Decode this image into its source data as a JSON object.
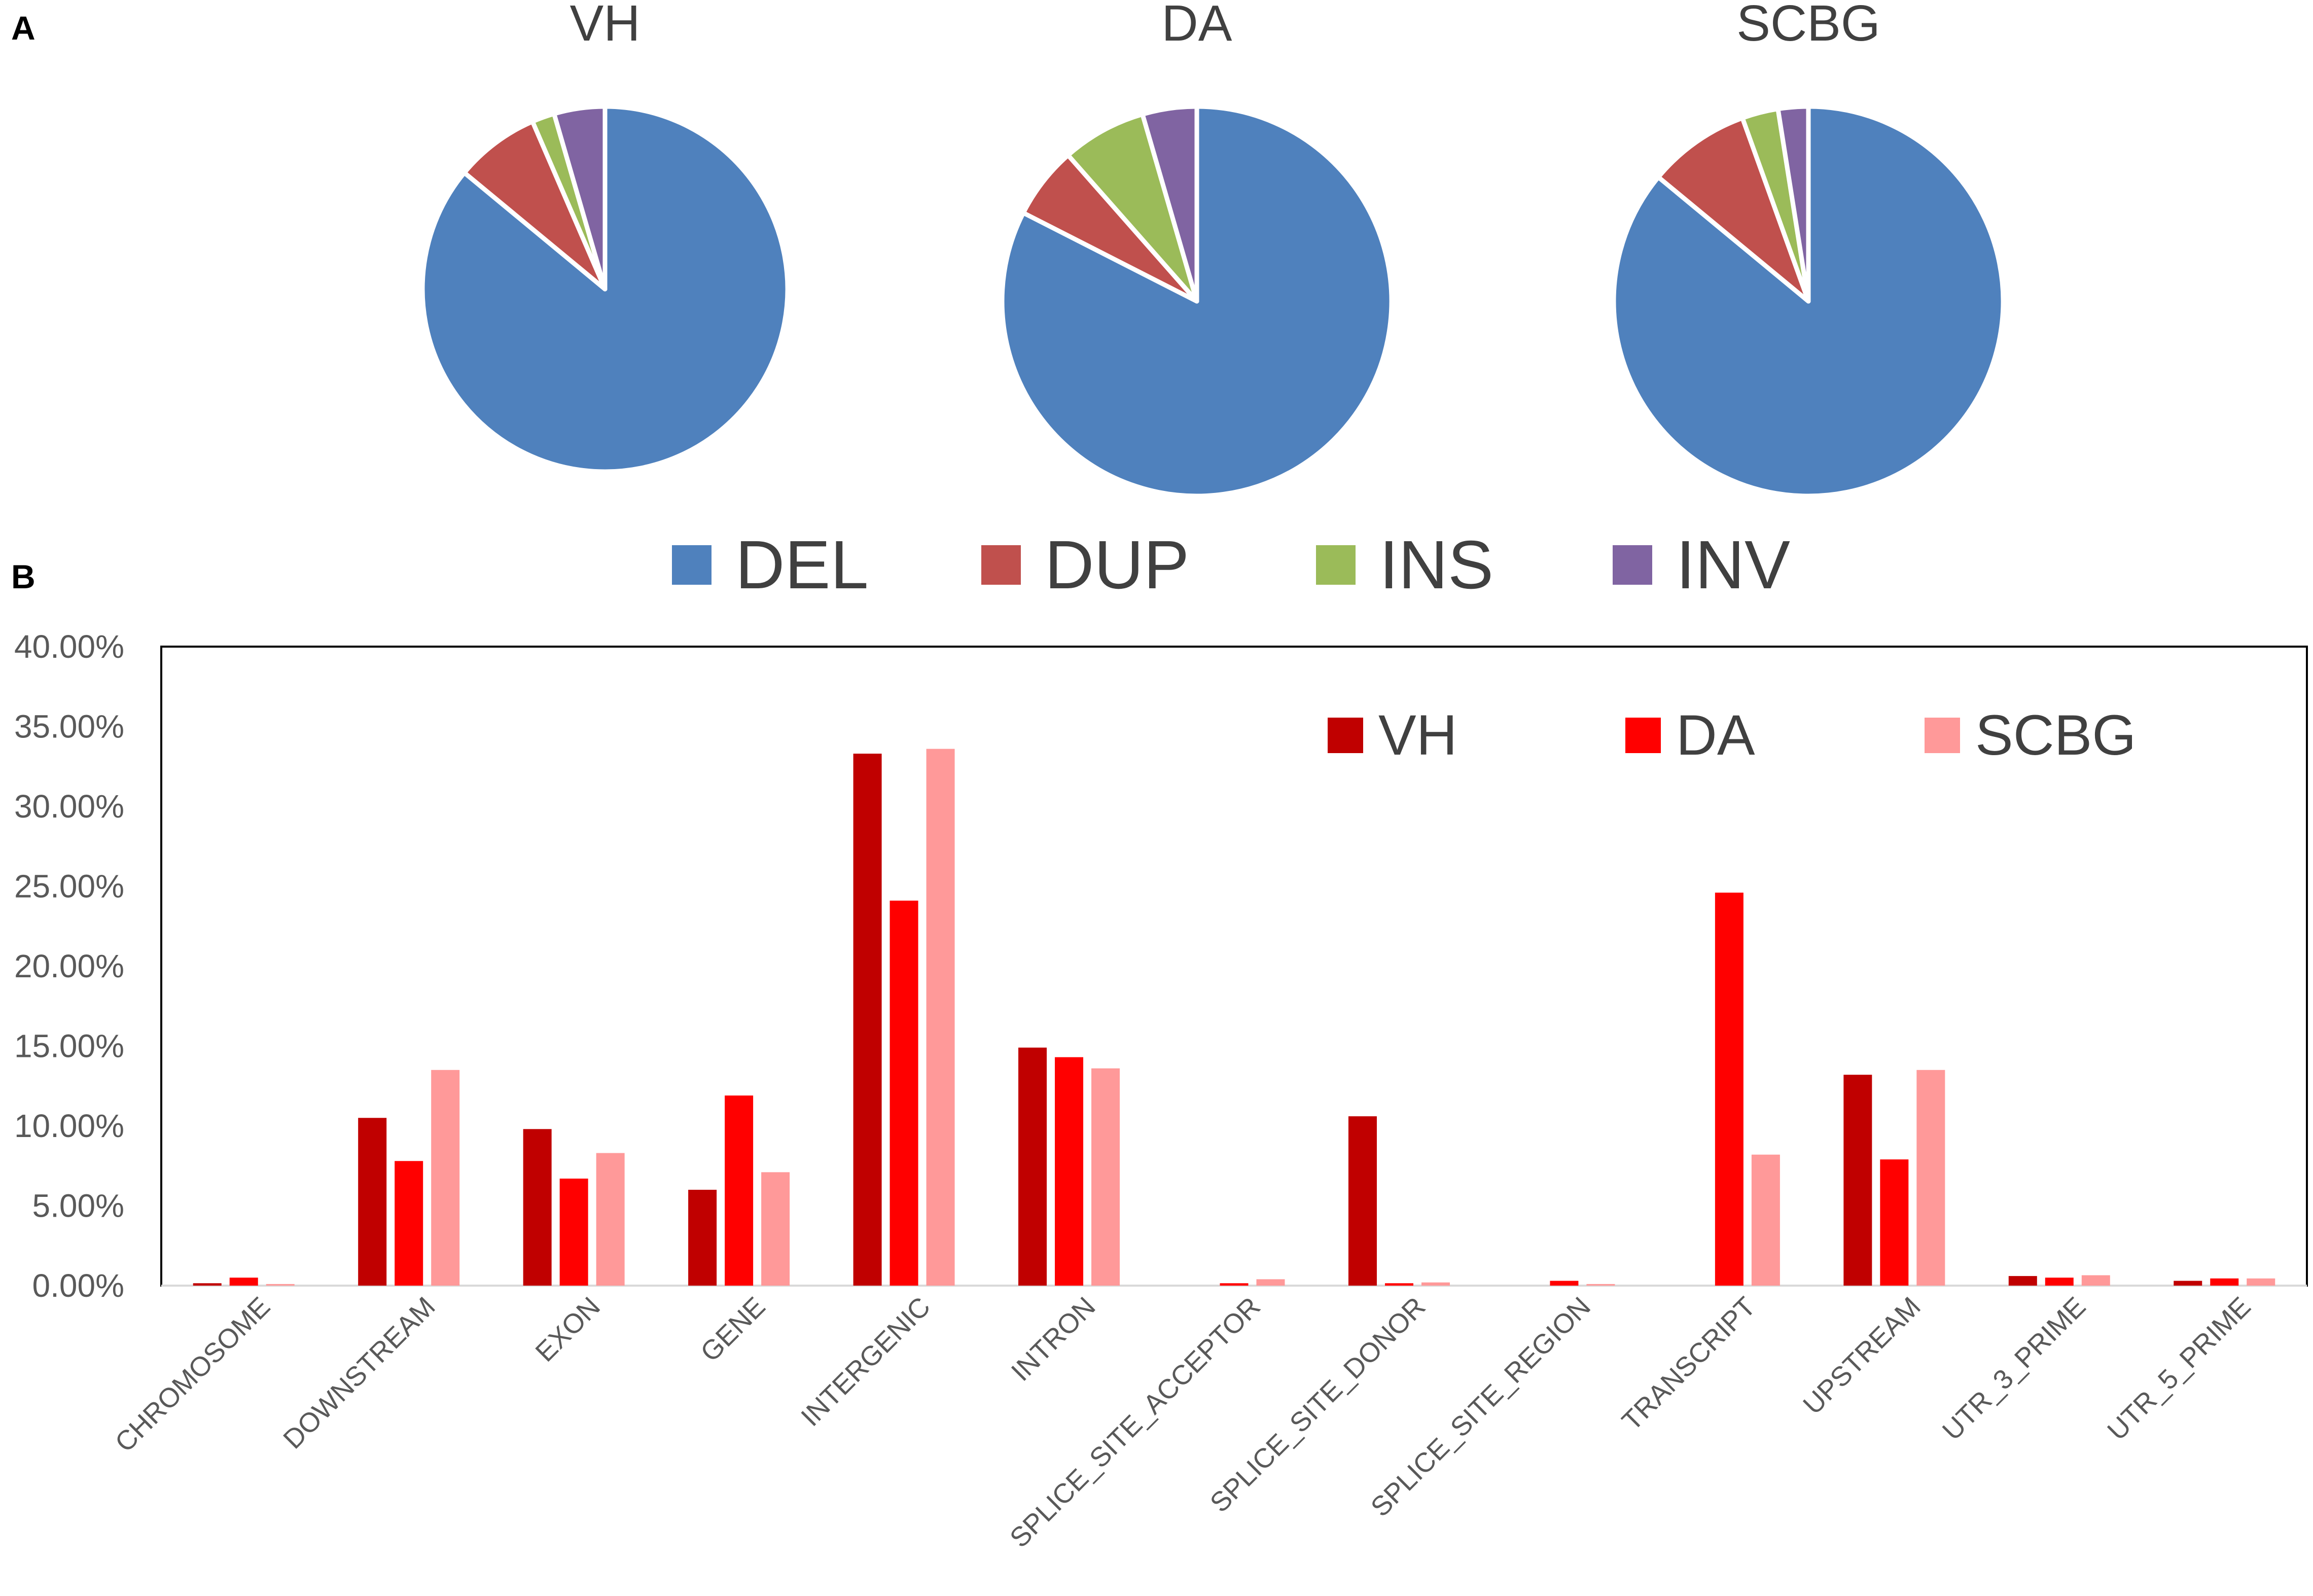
{
  "panels": {
    "a": "A",
    "b": "B"
  },
  "chart_data": [
    {
      "type": "pie",
      "panel": "A",
      "categories": [
        "DEL",
        "DUP",
        "INS",
        "INV"
      ],
      "colors": [
        "#4f81bd",
        "#c0504d",
        "#9bbb59",
        "#8064a2"
      ],
      "pies": [
        {
          "title": "VH",
          "values": [
            86.0,
            7.5,
            2.0,
            4.5
          ]
        },
        {
          "title": "DA",
          "values": [
            82.5,
            6.0,
            7.0,
            4.5
          ]
        },
        {
          "title": "SCBG",
          "values": [
            86.0,
            8.5,
            3.0,
            2.5
          ]
        }
      ],
      "legend": [
        "DEL",
        "DUP",
        "INS",
        "INV"
      ],
      "legend_position": "bottom"
    },
    {
      "type": "bar",
      "panel": "B",
      "categories": [
        "CHROMOSOME",
        "DOWNSTREAM",
        "EXON",
        "GENE",
        "INTERGENIC",
        "INTRON",
        "SPLICE_SITE_ACCEPTOR",
        "SPLICE_SITE_DONOR",
        "SPLICE_SITE_REGION",
        "TRANSCRIPT",
        "UPSTREAM",
        "UTR_3_PRIME",
        "UTR_5_PRIME"
      ],
      "series": [
        {
          "name": "VH",
          "color": "#c00000",
          "values": [
            0.15,
            10.5,
            9.8,
            6.0,
            33.3,
            14.9,
            0.0,
            10.6,
            0.0,
            0.0,
            13.2,
            0.6,
            0.3
          ]
        },
        {
          "name": "DA",
          "color": "#ff0000",
          "values": [
            0.5,
            7.8,
            6.7,
            11.9,
            24.1,
            14.3,
            0.15,
            0.15,
            0.3,
            24.6,
            7.9,
            0.5,
            0.45
          ]
        },
        {
          "name": "SCBG",
          "color": "#ff9999",
          "values": [
            0.1,
            13.5,
            8.3,
            7.1,
            33.6,
            13.6,
            0.4,
            0.2,
            0.1,
            8.2,
            13.5,
            0.65,
            0.45
          ]
        }
      ],
      "y_ticks": [
        "0.00%",
        "5.00%",
        "10.00%",
        "15.00%",
        "20.00%",
        "25.00%",
        "30.00%",
        "35.00%",
        "40.00%"
      ],
      "ylim": [
        0,
        40
      ],
      "ylabel": "",
      "xlabel": "",
      "legend": [
        "VH",
        "DA",
        "SCBG"
      ],
      "legend_position": "top-right",
      "grid": false
    }
  ]
}
